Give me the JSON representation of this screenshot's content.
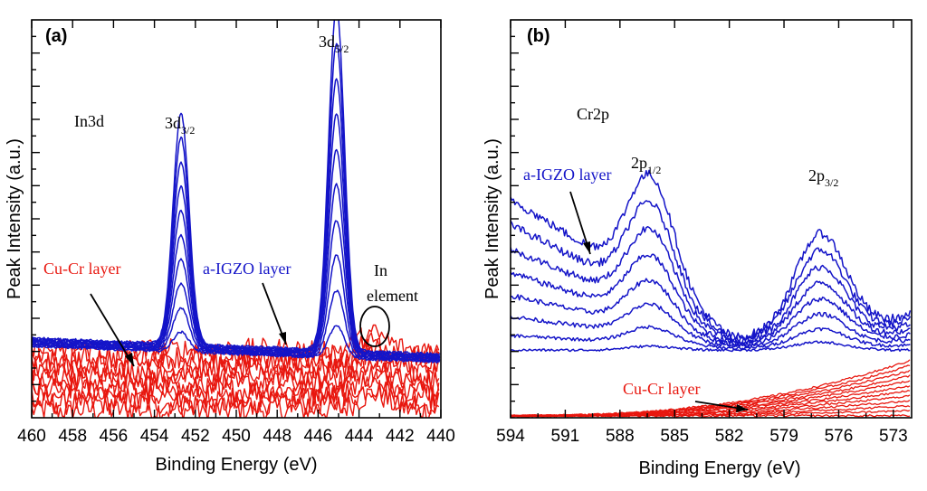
{
  "chart_data": [
    {
      "panel": "a",
      "type": "line",
      "panel_label": "(a)",
      "title": "In3d",
      "xlabel": "Binding Energy (eV)",
      "ylabel": "Peak Intensity (a.u.)",
      "xlim": [
        460,
        440
      ],
      "x_reversed": true,
      "ylim": [
        0,
        100
      ],
      "x_ticks": [
        "460",
        "458",
        "456",
        "454",
        "452",
        "450",
        "448",
        "446",
        "444",
        "442",
        "440"
      ],
      "peak_labels": [
        {
          "base": "3d",
          "sub": "3/2",
          "x": 452.7
        },
        {
          "base": "3d",
          "sub": "5/2",
          "x": 445.1
        }
      ],
      "annotations": [
        {
          "text": "Cu-Cr layer",
          "color": "#e8170f"
        },
        {
          "text": "a-IGZO layer",
          "color": "#1414c8"
        },
        {
          "text": "In",
          "color": "#000000"
        },
        {
          "text": "element",
          "color": "#000000"
        }
      ],
      "series_groups": [
        {
          "name": "a-IGZO layer",
          "color": "#1414c8",
          "count": 10,
          "peaks": [
            {
              "center": 452.7,
              "width": 0.55,
              "min_height": 5,
              "max_height": 58
            },
            {
              "center": 445.1,
              "width": 0.55,
              "min_height": 8,
              "max_height": 86
            }
          ],
          "baseline_start": 18,
          "baseline_end": 14
        },
        {
          "name": "Cu-Cr layer",
          "color": "#e8170f",
          "count": 10,
          "baseline_min": 2,
          "baseline_max": 17,
          "noise": 6
        }
      ]
    },
    {
      "panel": "b",
      "type": "line",
      "panel_label": "(b)",
      "title": "Cr2p",
      "xlabel": "Binding Energy (eV)",
      "ylabel": "Peak Intensity (a.u.)",
      "xlim": [
        594,
        572
      ],
      "x_reversed": true,
      "ylim": [
        0,
        100
      ],
      "x_ticks": [
        "594",
        "591",
        "588",
        "585",
        "582",
        "579",
        "576",
        "573"
      ],
      "peak_labels": [
        {
          "base": "2p",
          "sub": "1/2",
          "x": 586.2
        },
        {
          "base": "2p",
          "sub": "3/2",
          "x": 576.8
        }
      ],
      "annotations": [
        {
          "text": "a-IGZO layer",
          "color": "#1414c8"
        },
        {
          "text": "Cu-Cr layer",
          "color": "#e8170f"
        }
      ],
      "series_groups": [
        {
          "name": "a-IGZO layer",
          "color": "#1414c8",
          "count": 8,
          "peaks": [
            {
              "center": 586.3,
              "width": 1.8,
              "min_height": 1,
              "max_height": 28
            },
            {
              "center": 577.0,
              "width": 2.0,
              "min_height": 2,
              "max_height": 25
            }
          ],
          "baseline_start_max": 55,
          "baseline_end": 27
        },
        {
          "name": "Cu-Cr layer",
          "color": "#e8170f",
          "count": 12,
          "baseline_start": 0,
          "rise_end_max": 14
        }
      ]
    }
  ]
}
